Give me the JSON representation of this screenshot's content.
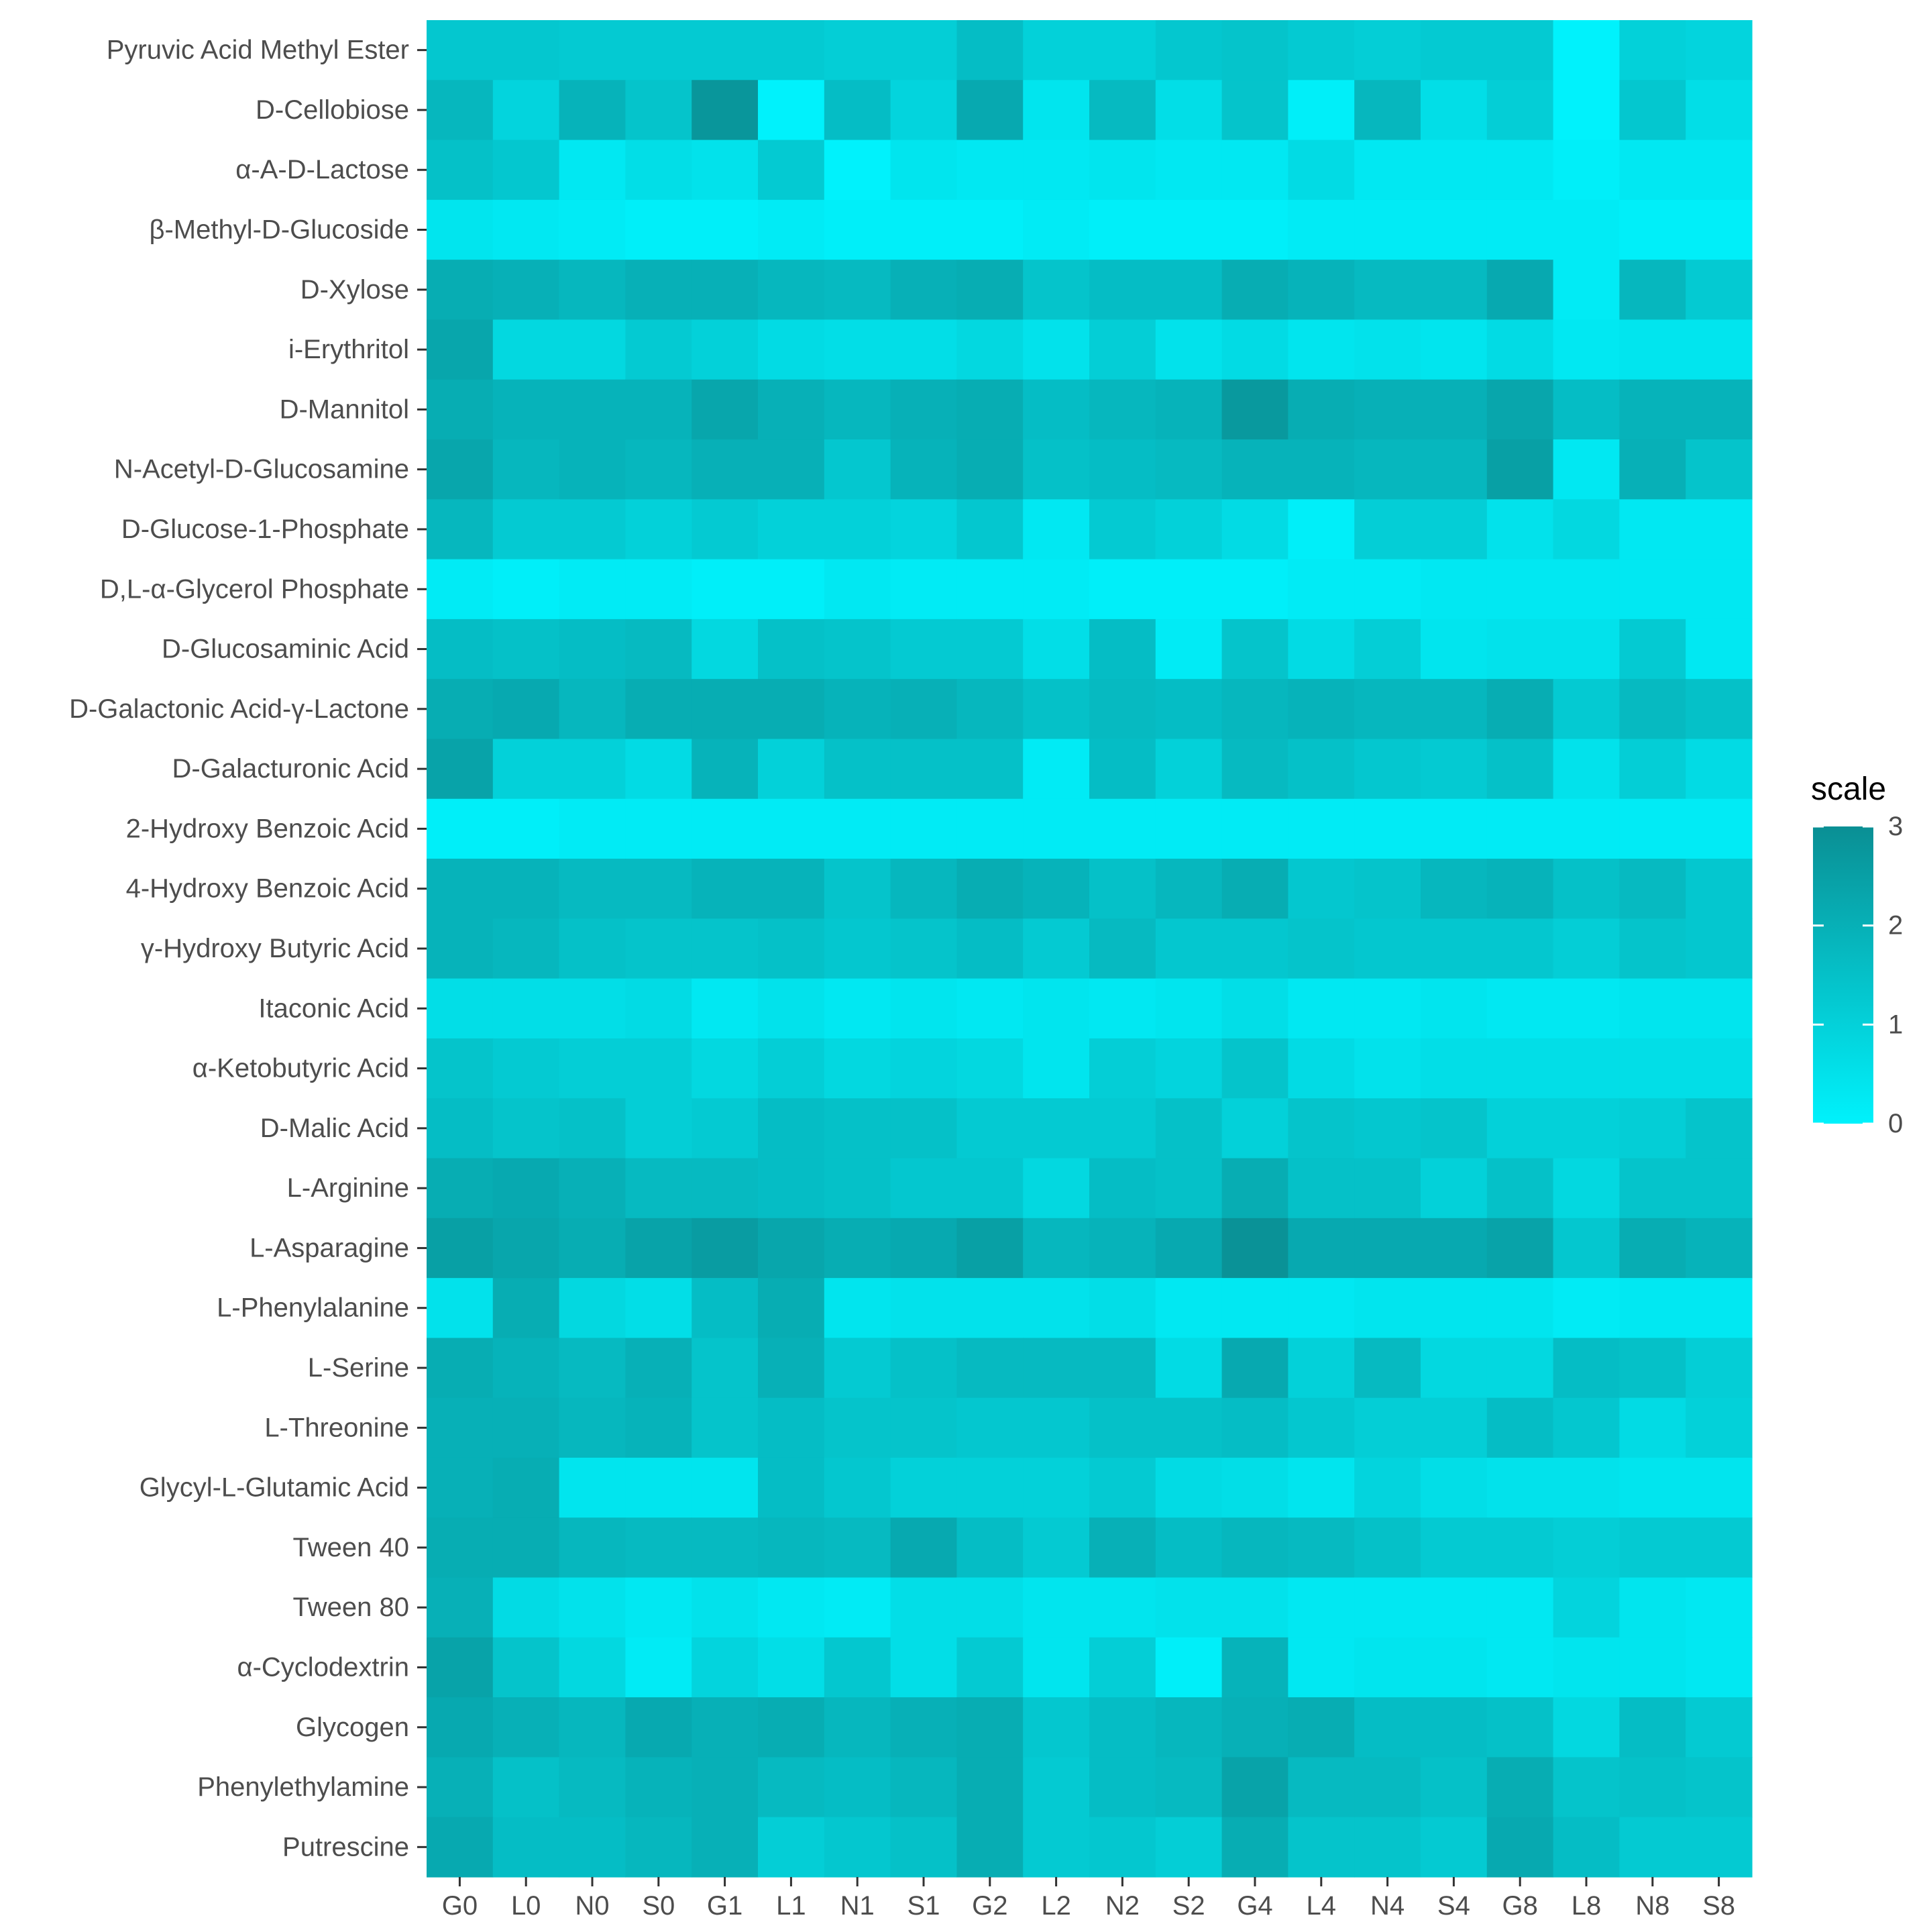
{
  "chart_data": {
    "type": "heatmap",
    "x_categories": [
      "G0",
      "L0",
      "N0",
      "S0",
      "G1",
      "L1",
      "N1",
      "S1",
      "G2",
      "L2",
      "N2",
      "S2",
      "G4",
      "L4",
      "N4",
      "S4",
      "G8",
      "L8",
      "N8",
      "S8"
    ],
    "y_categories": [
      "Pyruvic Acid Methyl Ester",
      "D-Cellobiose",
      "α-A-D-Lactose",
      "β-Methyl-D-Glucoside",
      "D-Xylose",
      "i-Erythritol",
      "D-Mannitol",
      "N-Acetyl-D-Glucosamine",
      "D-Glucose-1-Phosphate",
      "D,L-α-Glycerol Phosphate",
      "D-Glucosaminic Acid",
      "D-Galactonic Acid-γ-Lactone",
      "D-Galacturonic Acid",
      "2-Hydroxy Benzoic Acid",
      "4-Hydroxy Benzoic Acid",
      "γ-Hydroxy Butyric Acid",
      "Itaconic Acid",
      "α-Ketobutyric Acid",
      "D-Malic Acid",
      "L-Arginine",
      "L-Asparagine",
      "L-Phenylalanine",
      "L-Serine",
      "L-Threonine",
      "Glycyl-L-Glutamic Acid",
      "Tween 40",
      "Tween 80",
      "α-Cyclodextrin",
      "Glycogen",
      "Phenylethylamine",
      "Putrescine"
    ],
    "values": [
      [
        1.3,
        1.3,
        1.2,
        1.2,
        1.2,
        1.2,
        1.1,
        1.1,
        1.6,
        1.0,
        1.0,
        1.3,
        1.4,
        1.2,
        1.1,
        1.2,
        1.2,
        0.0,
        1.0,
        0.9
      ],
      [
        1.8,
        0.9,
        1.9,
        1.4,
        2.8,
        0.0,
        1.6,
        0.9,
        2.2,
        0.4,
        1.7,
        0.6,
        1.4,
        0.1,
        1.8,
        0.6,
        1.1,
        0.0,
        1.3,
        0.6
      ],
      [
        1.5,
        1.3,
        0.3,
        0.6,
        0.5,
        1.2,
        0.0,
        0.4,
        0.3,
        0.3,
        0.4,
        0.3,
        0.3,
        0.7,
        0.3,
        0.3,
        0.3,
        0.1,
        0.3,
        0.3
      ],
      [
        0.4,
        0.3,
        0.2,
        0.1,
        0.1,
        0.2,
        0.1,
        0.1,
        0.1,
        0.2,
        0.1,
        0.1,
        0.1,
        0.2,
        0.2,
        0.2,
        0.2,
        0.2,
        0.1,
        0.1
      ],
      [
        2.1,
        2.0,
        1.8,
        2.0,
        2.0,
        1.8,
        1.7,
        2.0,
        2.1,
        1.4,
        1.6,
        1.6,
        2.1,
        1.9,
        1.7,
        1.7,
        2.2,
        0.2,
        1.8,
        1.2
      ],
      [
        2.3,
        0.8,
        0.8,
        1.2,
        1.0,
        0.7,
        0.6,
        0.6,
        0.8,
        0.5,
        1.1,
        0.5,
        0.7,
        0.4,
        0.5,
        0.4,
        0.7,
        0.3,
        0.4,
        0.4
      ],
      [
        2.1,
        1.9,
        1.9,
        1.9,
        2.3,
        2.0,
        1.8,
        2.0,
        2.1,
        1.6,
        1.8,
        1.9,
        2.7,
        2.1,
        2.0,
        2.0,
        2.3,
        1.6,
        1.9,
        1.9
      ],
      [
        2.3,
        1.8,
        1.9,
        1.8,
        2.0,
        2.0,
        1.3,
        1.9,
        2.1,
        1.5,
        1.6,
        1.7,
        1.9,
        1.9,
        1.8,
        1.8,
        2.5,
        0.3,
        2.0,
        1.4
      ],
      [
        1.8,
        1.2,
        1.2,
        1.0,
        1.2,
        1.0,
        1.0,
        0.9,
        1.3,
        0.3,
        1.2,
        1.0,
        0.7,
        0.1,
        1.1,
        1.1,
        0.5,
        0.8,
        0.3,
        0.3
      ],
      [
        0.2,
        0.1,
        0.2,
        0.2,
        0.1,
        0.1,
        0.3,
        0.2,
        0.2,
        0.2,
        0.1,
        0.1,
        0.1,
        0.2,
        0.2,
        0.3,
        0.3,
        0.3,
        0.3,
        0.3
      ],
      [
        1.6,
        1.5,
        1.6,
        1.7,
        0.8,
        1.5,
        1.4,
        1.2,
        1.2,
        0.6,
        1.6,
        0.2,
        1.4,
        0.7,
        1.1,
        0.4,
        0.5,
        0.5,
        1.2,
        0.3
      ],
      [
        2.1,
        2.2,
        1.8,
        2.1,
        2.1,
        2.1,
        1.9,
        2.0,
        1.8,
        1.5,
        1.7,
        1.6,
        1.8,
        1.9,
        1.8,
        1.8,
        2.1,
        1.2,
        1.7,
        1.5
      ],
      [
        2.4,
        1.0,
        1.0,
        0.7,
        1.9,
        1.0,
        1.5,
        1.5,
        1.5,
        0.2,
        1.6,
        1.0,
        1.7,
        1.5,
        1.3,
        1.2,
        1.5,
        0.5,
        1.1,
        0.7
      ],
      [
        0.1,
        0.1,
        0.2,
        0.2,
        0.2,
        0.2,
        0.2,
        0.2,
        0.2,
        0.2,
        0.2,
        0.2,
        0.2,
        0.2,
        0.2,
        0.2,
        0.2,
        0.2,
        0.2,
        0.2
      ],
      [
        1.9,
        1.9,
        1.7,
        1.7,
        1.9,
        1.9,
        1.4,
        1.8,
        2.1,
        1.9,
        1.5,
        1.8,
        2.1,
        1.3,
        1.4,
        1.8,
        1.9,
        1.5,
        1.7,
        1.3
      ],
      [
        1.9,
        1.8,
        1.5,
        1.4,
        1.4,
        1.5,
        1.3,
        1.4,
        1.6,
        1.2,
        1.7,
        1.3,
        1.3,
        1.4,
        1.3,
        1.3,
        1.3,
        1.1,
        1.4,
        1.3
      ],
      [
        0.6,
        0.6,
        0.6,
        0.7,
        0.3,
        0.5,
        0.3,
        0.4,
        0.3,
        0.4,
        0.3,
        0.4,
        0.6,
        0.3,
        0.3,
        0.4,
        0.3,
        0.3,
        0.4,
        0.4
      ],
      [
        1.4,
        1.2,
        1.1,
        1.1,
        0.8,
        1.1,
        0.8,
        0.9,
        0.8,
        0.4,
        1.1,
        0.9,
        1.4,
        0.7,
        0.5,
        0.6,
        0.6,
        0.6,
        0.6,
        0.6
      ],
      [
        1.6,
        1.4,
        1.5,
        1.1,
        1.2,
        1.6,
        1.5,
        1.5,
        1.2,
        1.2,
        1.2,
        1.5,
        1.0,
        1.4,
        1.3,
        1.4,
        1.0,
        1.0,
        1.1,
        1.4
      ],
      [
        2.1,
        2.2,
        2.0,
        1.7,
        1.7,
        1.6,
        1.5,
        1.3,
        1.3,
        0.8,
        1.6,
        1.5,
        2.1,
        1.5,
        1.5,
        1.0,
        1.5,
        0.8,
        1.4,
        1.4
      ],
      [
        2.5,
        2.3,
        2.1,
        2.4,
        2.6,
        2.3,
        2.1,
        2.2,
        2.5,
        1.8,
        1.9,
        2.2,
        2.9,
        2.2,
        2.2,
        2.2,
        2.4,
        1.3,
        2.1,
        1.9
      ],
      [
        0.5,
        2.1,
        0.8,
        0.6,
        1.6,
        2.1,
        0.4,
        0.5,
        0.5,
        0.5,
        0.6,
        0.3,
        0.3,
        0.3,
        0.4,
        0.4,
        0.4,
        0.2,
        0.3,
        0.3
      ],
      [
        2.1,
        1.9,
        1.7,
        2.0,
        1.4,
        2.0,
        1.2,
        1.5,
        1.7,
        1.7,
        1.7,
        0.7,
        2.2,
        1.0,
        1.7,
        0.8,
        0.8,
        1.6,
        1.5,
        1.1
      ],
      [
        2.0,
        2.0,
        1.8,
        1.9,
        1.4,
        1.6,
        1.4,
        1.4,
        1.3,
        1.3,
        1.5,
        1.5,
        1.6,
        1.3,
        1.1,
        1.1,
        1.6,
        1.3,
        0.7,
        1.0
      ],
      [
        2.0,
        2.1,
        0.4,
        0.4,
        0.4,
        1.6,
        1.3,
        1.0,
        1.0,
        1.0,
        1.2,
        0.7,
        0.6,
        0.4,
        0.9,
        0.6,
        0.5,
        0.5,
        0.4,
        0.4
      ],
      [
        2.1,
        2.1,
        1.8,
        1.7,
        1.7,
        1.8,
        1.7,
        2.2,
        1.6,
        1.2,
        2.0,
        1.6,
        1.8,
        1.7,
        1.5,
        1.2,
        1.2,
        1.1,
        1.2,
        1.2
      ],
      [
        2.0,
        0.7,
        0.5,
        0.3,
        0.5,
        0.3,
        0.2,
        0.6,
        0.6,
        0.4,
        0.4,
        0.5,
        0.5,
        0.3,
        0.3,
        0.3,
        0.3,
        0.9,
        0.4,
        0.3
      ],
      [
        2.4,
        1.4,
        0.8,
        0.2,
        0.9,
        0.6,
        1.3,
        0.6,
        1.2,
        0.4,
        1.1,
        0.1,
        1.9,
        0.3,
        0.4,
        0.4,
        0.3,
        0.4,
        0.4,
        0.3
      ],
      [
        2.2,
        2.0,
        1.8,
        2.2,
        2.0,
        2.1,
        1.8,
        2.0,
        2.1,
        1.3,
        1.6,
        1.8,
        2.0,
        2.1,
        1.6,
        1.6,
        1.5,
        0.8,
        1.6,
        1.2
      ],
      [
        2.0,
        1.5,
        1.7,
        1.9,
        2.0,
        1.7,
        1.6,
        1.8,
        2.1,
        1.2,
        1.6,
        1.7,
        2.4,
        1.7,
        1.7,
        1.5,
        2.1,
        1.4,
        1.5,
        1.4
      ],
      [
        2.2,
        1.6,
        1.6,
        1.8,
        2.0,
        1.1,
        1.3,
        1.5,
        2.1,
        1.2,
        1.3,
        1.1,
        2.1,
        1.4,
        1.4,
        1.2,
        2.2,
        1.6,
        1.2,
        1.2
      ]
    ],
    "xlabel": "",
    "ylabel": "",
    "legend": {
      "title": "scale",
      "min": 0,
      "max": 3,
      "ticks": [
        "0",
        "1",
        "2",
        "3"
      ],
      "position": "right",
      "low_color": "#00f2fc",
      "high_color": "#0a8f94"
    },
    "colors": {
      "panel_background": "#ebebeb",
      "tick_color": "#333333",
      "label_color": "#4d4d4d",
      "title_color": "#000000"
    }
  }
}
